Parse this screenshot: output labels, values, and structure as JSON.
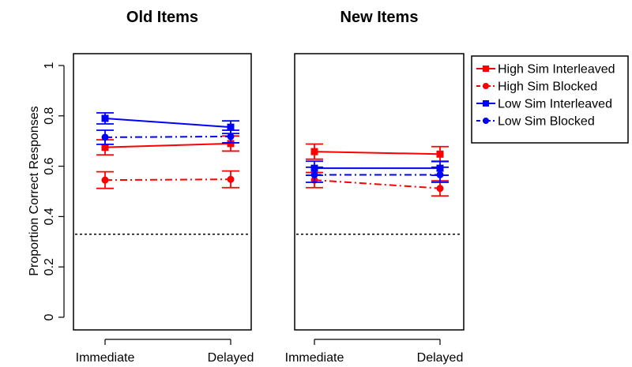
{
  "chart_data": {
    "type": "line",
    "ylabel": "Proportion Correct Responses",
    "ylim": [
      0,
      1
    ],
    "yticks": [
      "0",
      "0.2",
      "0.4",
      "0.6",
      "0.8",
      "1"
    ],
    "categories": [
      "Immediate",
      "Delayed"
    ],
    "reference_line": {
      "y": 0.33,
      "style": "dotted",
      "color": "#000000"
    },
    "legend": {
      "placement": "right-top"
    },
    "panels": [
      {
        "title": "Old Items",
        "series": [
          {
            "name": "High Sim Interleaved",
            "color": "#ff0000",
            "marker": "square",
            "line": "solid",
            "values": [
              0.675,
              0.69
            ],
            "errors": [
              0.03,
              0.03
            ]
          },
          {
            "name": "High Sim Blocked",
            "color": "#ff0000",
            "marker": "circle",
            "line": "dashdot",
            "values": [
              0.545,
              0.548
            ],
            "errors": [
              0.033,
              0.033
            ]
          },
          {
            "name": "Low Sim Interleaved",
            "color": "#0000ff",
            "marker": "square",
            "line": "solid",
            "values": [
              0.79,
              0.755
            ],
            "errors": [
              0.022,
              0.025
            ]
          },
          {
            "name": "Low Sim Blocked",
            "color": "#0000ff",
            "marker": "circle",
            "line": "dashdot",
            "values": [
              0.715,
              0.718
            ],
            "errors": [
              0.028,
              0.025
            ]
          }
        ]
      },
      {
        "title": "New Items",
        "series": [
          {
            "name": "High Sim Interleaved",
            "color": "#ff0000",
            "marker": "square",
            "line": "solid",
            "values": [
              0.658,
              0.648
            ],
            "errors": [
              0.03,
              0.03
            ]
          },
          {
            "name": "High Sim Blocked",
            "color": "#ff0000",
            "marker": "circle",
            "line": "dashdot",
            "values": [
              0.545,
              0.512
            ],
            "errors": [
              0.03,
              0.03
            ]
          },
          {
            "name": "Low Sim Interleaved",
            "color": "#0000ff",
            "marker": "square",
            "line": "solid",
            "values": [
              0.592,
              0.592
            ],
            "errors": [
              0.028,
              0.028
            ]
          },
          {
            "name": "Low Sim Blocked",
            "color": "#0000ff",
            "marker": "circle",
            "line": "dashdot",
            "values": [
              0.566,
              0.566
            ],
            "errors": [
              0.03,
              0.03
            ]
          }
        ]
      }
    ]
  }
}
